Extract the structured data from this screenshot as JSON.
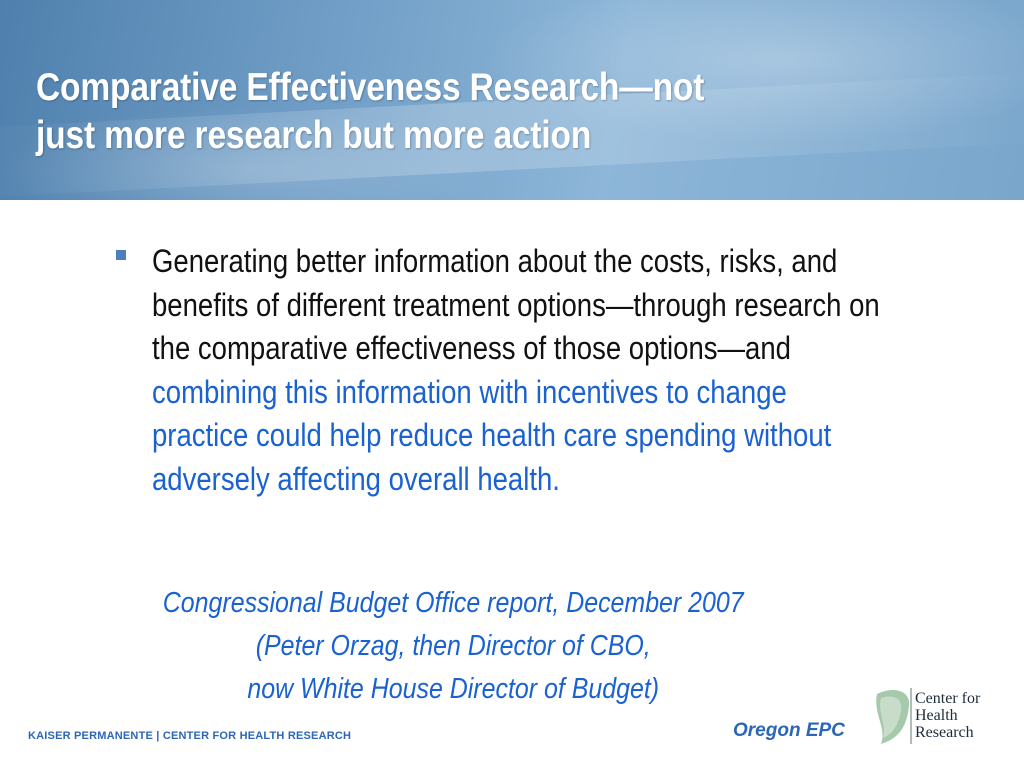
{
  "slide": {
    "title_line1": "Comparative Effectiveness Research—not",
    "title_line2": "just more research but more action",
    "bullet": {
      "text_plain": "Generating better information about the costs, risks, and benefits of different treatment options—through research on the comparative effectiveness of those options—and ",
      "text_highlight": "combining this information with incentives to change practice could help reduce health care spending without adversely affecting overall health."
    },
    "quote": {
      "line1": "Congressional Budget Office report, December 2007",
      "line2": "(Peter Orzag, then Director of CBO,",
      "line3": "now White House Director of Budget)"
    },
    "footer": {
      "left": "KAISER PERMANENTE | CENTER FOR HEALTH RESEARCH",
      "epc": "Oregon EPC"
    },
    "logo": {
      "line1": "Center for",
      "line2": "Health",
      "line3": "Research"
    }
  },
  "colors": {
    "accent_blue": "#1a62d0",
    "footer_blue": "#2c66b8",
    "header_blue": "#6e9cc5",
    "logo_green": "#9fc3a4"
  },
  "icons": {
    "bullet": "square-bullet-icon",
    "logo": "leaf-logo-icon"
  }
}
